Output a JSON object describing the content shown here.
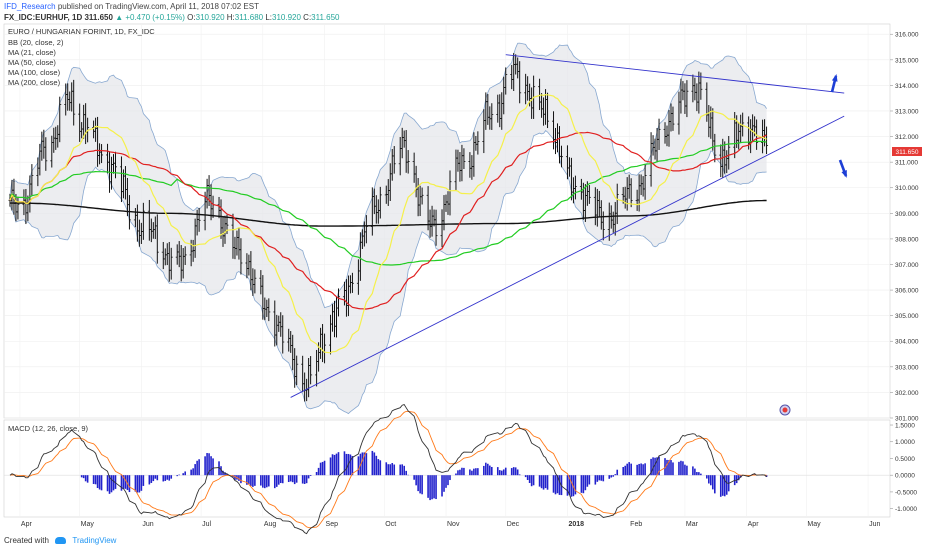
{
  "header": {
    "author": "IFD_Research",
    "published": "published on TradingView.com, April 11, 2018 07:02 EST",
    "symbol": "FX_IDC:EURHUF, 1D",
    "last": "311.650",
    "change": "▲ +0.470 (+0.15%)",
    "open_label": "O:",
    "open": "310.920",
    "high_label": "H:",
    "high": "311.680",
    "low_label": "L:",
    "low": "310.920",
    "close_label": "C:",
    "close": "311.650"
  },
  "legend": {
    "title": "EURO / HUNGARIAN FORINT, 1D, FX_IDC",
    "items": [
      "BB (20, close, 2)",
      "MA (21, close)",
      "MA (50, close)",
      "MA (100, close)",
      "MA (200, close)"
    ]
  },
  "macd_label": "MACD (12, 26, close, 9)",
  "footer": {
    "created": "Created with",
    "brand": "TradingView"
  },
  "colors": {
    "bb": "#88a8d0",
    "ma21": "#f5f04a",
    "ma50": "#e02020",
    "ma100": "#22cc22",
    "ma200": "#111111",
    "trend": "#3333cc",
    "macd": "#333333",
    "signal": "#ff7a1a",
    "hist": "#2222cc",
    "price_badge": "#e53935"
  },
  "chart_data": {
    "type": "line",
    "symbol": "EURHUF",
    "x_ticks": [
      "Apr",
      "May",
      "Jun",
      "Jul",
      "Aug",
      "Sep",
      "Oct",
      "Nov",
      "Dec",
      "2018",
      "Feb",
      "Mar",
      "Apr",
      "May",
      "Jun"
    ],
    "y_ticks": [
      "316.000",
      "315.000",
      "314.000",
      "313.000",
      "312.000",
      "311.000",
      "310.000",
      "309.000",
      "308.000",
      "307.000",
      "306.000",
      "305.000",
      "304.000",
      "303.000",
      "302.000",
      "301.000"
    ],
    "ylim": [
      301,
      316.4
    ],
    "current_price": "311.650",
    "price_anchors": [
      [
        "2017-04-01",
        309.3
      ],
      [
        "2017-04-15",
        311.6
      ],
      [
        "2017-04-25",
        313.4
      ],
      [
        "2017-05-02",
        312.6
      ],
      [
        "2017-05-15",
        311.0
      ],
      [
        "2017-06-01",
        308.5
      ],
      [
        "2017-06-20",
        307.0
      ],
      [
        "2017-07-05",
        309.5
      ],
      [
        "2017-07-20",
        307.5
      ],
      [
        "2017-08-05",
        305.0
      ],
      [
        "2017-08-22",
        302.5
      ],
      [
        "2017-09-10",
        305.5
      ],
      [
        "2017-09-25",
        309.0
      ],
      [
        "2017-10-10",
        311.5
      ],
      [
        "2017-10-25",
        308.5
      ],
      [
        "2017-11-10",
        311.0
      ],
      [
        "2017-11-25",
        313.0
      ],
      [
        "2017-12-05",
        314.5
      ],
      [
        "2017-12-20",
        313.0
      ],
      [
        "2018-01-05",
        310.0
      ],
      [
        "2018-01-20",
        308.8
      ],
      [
        "2018-02-05",
        310.0
      ],
      [
        "2018-02-20",
        312.5
      ],
      [
        "2018-03-05",
        314.0
      ],
      [
        "2018-03-20",
        311.2
      ],
      [
        "2018-04-01",
        312.5
      ],
      [
        "2018-04-11",
        311.65
      ]
    ],
    "ma200_anchors": [
      [
        "2017-04-01",
        309.4
      ],
      [
        "2017-06-15",
        309.0
      ],
      [
        "2017-09-01",
        308.5
      ],
      [
        "2017-12-01",
        308.6
      ],
      [
        "2018-02-01",
        308.9
      ],
      [
        "2018-04-11",
        309.5
      ]
    ],
    "trendlines": [
      {
        "name": "support",
        "from": [
          "2017-08-22",
          302.0
        ],
        "to": [
          "2018-05-20",
          312.8
        ]
      },
      {
        "name": "resistance",
        "from": [
          "2017-12-01",
          315.2
        ],
        "to": [
          "2018-05-20",
          313.7
        ]
      }
    ],
    "arrows": [
      {
        "name": "up",
        "direction": "up"
      },
      {
        "name": "down",
        "direction": "down"
      }
    ],
    "macd": {
      "title": "MACD (12, 26, close, 9)",
      "y_ticks": [
        "1.5000",
        "1.0000",
        "0.5000",
        "0.0000",
        "-0.5000",
        "-1.0000"
      ],
      "ylim": [
        -1.25,
        1.65
      ]
    }
  }
}
